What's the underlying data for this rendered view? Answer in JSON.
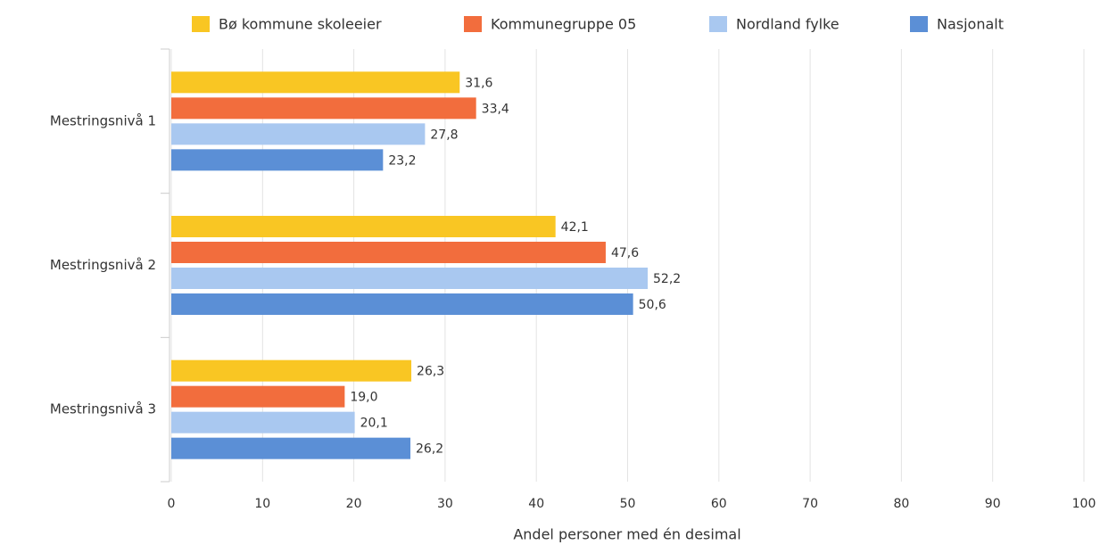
{
  "chart_data": {
    "type": "hbar",
    "categories": [
      "Mestringsnivå 1",
      "Mestringsnivå 2",
      "Mestringsnivå 3"
    ],
    "series": [
      {
        "name": "Bø kommune skoleeier",
        "color": "#f9c623",
        "values": [
          31.6,
          42.1,
          26.3
        ],
        "value_labels": [
          "31,6",
          "42,1",
          "26,3"
        ]
      },
      {
        "name": "Kommunegruppe 05",
        "color": "#f26d3d",
        "values": [
          33.4,
          47.6,
          19.0
        ],
        "value_labels": [
          "33,4",
          "47,6",
          "19,0"
        ]
      },
      {
        "name": "Nordland fylke",
        "color": "#a9c8f0",
        "values": [
          27.8,
          52.2,
          20.1
        ],
        "value_labels": [
          "27,8",
          "52,2",
          "20,1"
        ]
      },
      {
        "name": "Nasjonalt",
        "color": "#5b8fd6",
        "values": [
          23.2,
          50.6,
          26.2
        ],
        "value_labels": [
          "23,2",
          "50,6",
          "26,2"
        ]
      }
    ],
    "xlabel": "Andel personer med én desimal",
    "xlim": [
      0,
      100
    ],
    "xticks": [
      0,
      10,
      20,
      30,
      40,
      50,
      60,
      70,
      80,
      90,
      100
    ],
    "grid": true,
    "legend": "top"
  }
}
